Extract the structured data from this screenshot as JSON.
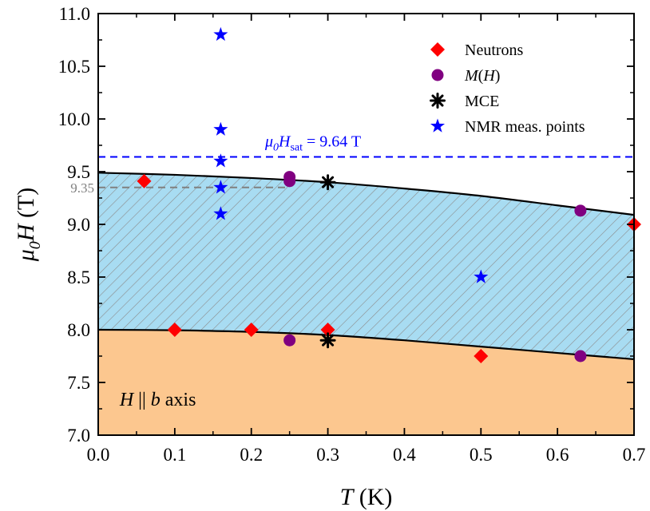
{
  "chart_data": {
    "type": "scatter",
    "xlim": [
      0.0,
      0.7
    ],
    "ylim": [
      7.0,
      11.0
    ],
    "xticks": [
      "0.0",
      "0.1",
      "0.2",
      "0.3",
      "0.4",
      "0.5",
      "0.6",
      "0.7"
    ],
    "yticks": [
      "7.0",
      "7.5",
      "8.0",
      "8.5",
      "9.0",
      "9.5",
      "10.0",
      "10.5",
      "11.0"
    ],
    "xlabel": {
      "main": "T",
      "unit": " (K)"
    },
    "ylabel": {
      "mu": "μ",
      "sub": "0",
      "main": "H",
      "unit": " (T)"
    },
    "grid": false,
    "legend_position": "top-right",
    "series": [
      {
        "name": "Neutrons",
        "marker": "diamond",
        "color": "#ff0000",
        "points": [
          [
            0.06,
            9.41
          ],
          [
            0.1,
            8.0
          ],
          [
            0.2,
            8.0
          ],
          [
            0.3,
            8.0
          ],
          [
            0.5,
            7.75
          ],
          [
            0.7,
            9.0
          ]
        ]
      },
      {
        "name": "M(H)",
        "marker": "circle",
        "color": "#800080",
        "points": [
          [
            0.25,
            9.45
          ],
          [
            0.25,
            9.41
          ],
          [
            0.25,
            7.9
          ],
          [
            0.63,
            9.13
          ],
          [
            0.63,
            7.75
          ]
        ]
      },
      {
        "name": "MCE",
        "marker": "asterisk",
        "color": "#000000",
        "points": [
          [
            0.3,
            9.4
          ],
          [
            0.3,
            7.9
          ]
        ]
      },
      {
        "name": "NMR meas. points",
        "marker": "star",
        "color": "#0000ff",
        "points": [
          [
            0.16,
            10.8
          ],
          [
            0.16,
            9.9
          ],
          [
            0.16,
            9.6
          ],
          [
            0.16,
            9.35
          ],
          [
            0.16,
            9.1
          ],
          [
            0.5,
            8.5
          ]
        ]
      }
    ],
    "upper_boundary": [
      [
        0.0,
        9.49
      ],
      [
        0.1,
        9.47
      ],
      [
        0.2,
        9.44
      ],
      [
        0.3,
        9.4
      ],
      [
        0.4,
        9.34
      ],
      [
        0.5,
        9.27
      ],
      [
        0.6,
        9.18
      ],
      [
        0.7,
        9.09
      ]
    ],
    "lower_boundary": [
      [
        0.0,
        8.0
      ],
      [
        0.1,
        7.995
      ],
      [
        0.2,
        7.98
      ],
      [
        0.3,
        7.95
      ],
      [
        0.4,
        7.9
      ],
      [
        0.5,
        7.84
      ],
      [
        0.6,
        7.78
      ],
      [
        0.7,
        7.72
      ]
    ],
    "saturation_line": {
      "y": 9.64,
      "color": "#0000ff",
      "label_mu": "μ",
      "label_sub0": "0",
      "label_H": "H",
      "label_sub": "sat",
      "label_value": " = 9.64 T"
    },
    "reference_line": {
      "y": 9.35,
      "x_end": 0.25,
      "color": "#808080",
      "label": "9.35"
    },
    "region_colors": {
      "lower": "#fcc78f",
      "middle": "#a8dcf2",
      "hatch": "#8c8c8c"
    },
    "annotation": {
      "H": "H",
      "parallel": " || ",
      "b": "b",
      "axis": " axis"
    }
  }
}
